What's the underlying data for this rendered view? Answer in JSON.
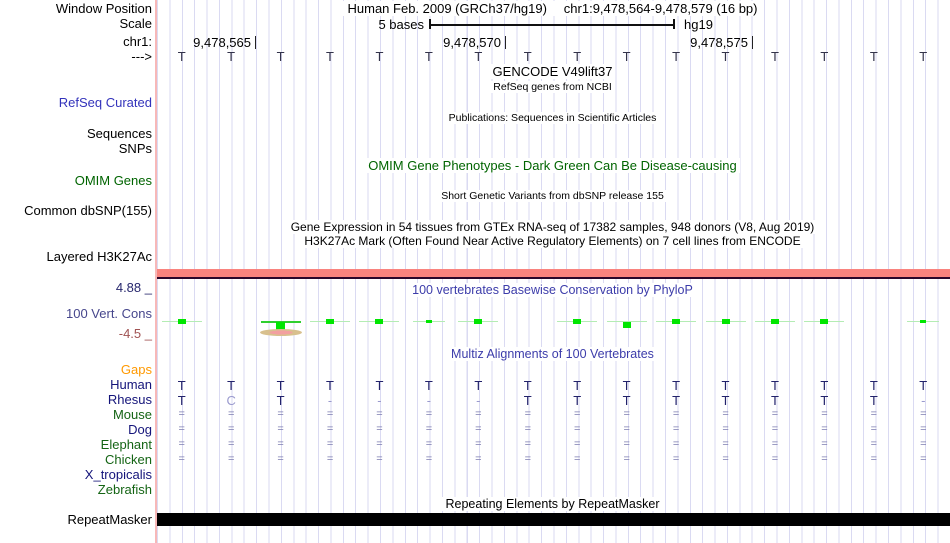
{
  "header": {
    "left_label": "Window Position",
    "assembly": "Human Feb. 2009 (GRCh37/hg19)",
    "position": "chr1:9,478,564-9,478,579 (16 bp)"
  },
  "scale_row": {
    "left_label": "Scale",
    "bar_label": "5 bases",
    "assembly": "hg19"
  },
  "ruler": {
    "left_label": "chr1:",
    "ticks": [
      {
        "label": "9,478,565",
        "x": 255
      },
      {
        "label": "9,478,570",
        "x": 505
      },
      {
        "label": "9,478,575",
        "x": 752
      }
    ]
  },
  "sequence": {
    "left_label": "--->",
    "bases": [
      "T",
      "T",
      "T",
      "T",
      "T",
      "T",
      "T",
      "T",
      "T",
      "T",
      "T",
      "T",
      "T",
      "T",
      "T",
      "T"
    ]
  },
  "tracks": {
    "gencode": {
      "center_label": "GENCODE V49lift37"
    },
    "refseq": {
      "center_label": "RefSeq genes from NCBI",
      "left_label": "RefSeq Curated"
    },
    "publications": {
      "center_label": "Publications: Sequences in Scientific Articles"
    },
    "sequences_label": "Sequences",
    "snps_label": "SNPs",
    "omim": {
      "center_label": "OMIM Gene Phenotypes - Dark Green Can Be Disease-causing",
      "left_label": "OMIM Genes"
    },
    "dbsnp": {
      "center_label": "Short Genetic Variants from dbSNP release 155",
      "left_label": "Common dbSNP(155)"
    },
    "gtex": {
      "center_label": "Gene Expression in 54 tissues from GTEx RNA-seq of 17382 samples, 948 donors (V8, Aug 2019)"
    },
    "h3k27ac": {
      "center_label": "H3K27Ac Mark (Often Found Near Active Regulatory Elements) on 7 cell lines from ENCODE",
      "left_label": "Layered H3K27Ac"
    },
    "conservation": {
      "center_label": "100 vertebrates Basewise Conservation by PhyloP",
      "left_label": "100 Vert. Cons",
      "max_label": "4.88 _",
      "min_label": "-4.5 _"
    },
    "multiz": {
      "center_label": "Multiz Alignments of 100 Vertebrates"
    },
    "repeatmasker": {
      "center_label": "Repeating Elements by RepeatMasker",
      "left_label": "RepeatMasker"
    }
  },
  "colors": {
    "track_blue_label": "#3333bb",
    "dark_green": "#006400",
    "center_blue": "#3c3caa",
    "cons_max": "#28286e",
    "cons_min": "#a05252",
    "cons_label": "#46468c",
    "orange": "#ff9900",
    "navy_species": "#14147a",
    "green_species": "#146414",
    "seq_letter": "#33334a",
    "aln_letter": "#22226b",
    "aln_soft": "#9a9ace",
    "aln_eq": "#7d7db0",
    "grid_line": "#dadaf2",
    "salmon_bar": "#f9837e",
    "black_bar": "#000000",
    "cons_bright": "#00e600",
    "cons_light_line": "#b4ecb4",
    "cons_dark_line": "#2fcf2f"
  },
  "chart_data": {
    "type": "genome-browser-tracks",
    "window": {
      "chrom": "chr1",
      "start": 9478564,
      "end": 9478579,
      "width_bp": 16,
      "db": "hg19"
    },
    "conservation": {
      "name": "100 Vert. Cons",
      "ylim": [
        -4.5,
        4.88
      ],
      "marks": [
        "normal",
        "none",
        "big",
        "normal",
        "normal",
        "small",
        "normal",
        "none",
        "normal",
        "below",
        "normal",
        "normal",
        "normal",
        "normal",
        "none",
        "small"
      ]
    },
    "alignment": {
      "species": [
        {
          "name": "Gaps",
          "label_color": "#ff9900",
          "row": []
        },
        {
          "name": "Human",
          "label_color": "#14147a",
          "row": [
            "T",
            "T",
            "T",
            "T",
            "T",
            "T",
            "T",
            "T",
            "T",
            "T",
            "T",
            "T",
            "T",
            "T",
            "T",
            "T"
          ]
        },
        {
          "name": "Rhesus",
          "label_color": "#14147a",
          "row": [
            "T",
            "C",
            "T",
            "-",
            "-",
            "-",
            "-",
            "T",
            "T",
            "T",
            "T",
            "T",
            "T",
            "T",
            "T",
            "-"
          ]
        },
        {
          "name": "Mouse",
          "label_color": "#146414",
          "row": [
            "=",
            "=",
            "=",
            "=",
            "=",
            "=",
            "=",
            "=",
            "=",
            "=",
            "=",
            "=",
            "=",
            "=",
            "=",
            "="
          ]
        },
        {
          "name": "Dog",
          "label_color": "#14147a",
          "row": [
            "=",
            "=",
            "=",
            "=",
            "=",
            "=",
            "=",
            "=",
            "=",
            "=",
            "=",
            "=",
            "=",
            "=",
            "=",
            "="
          ]
        },
        {
          "name": "Elephant",
          "label_color": "#146414",
          "row": [
            "=",
            "=",
            "=",
            "=",
            "=",
            "=",
            "=",
            "=",
            "=",
            "=",
            "=",
            "=",
            "=",
            "=",
            "=",
            "="
          ]
        },
        {
          "name": "Chicken",
          "label_color": "#146414",
          "row": [
            "=",
            "=",
            "=",
            "=",
            "=",
            "=",
            "=",
            "=",
            "=",
            "=",
            "=",
            "=",
            "=",
            "=",
            "=",
            "="
          ]
        },
        {
          "name": "X_tropicalis",
          "label_color": "#14147a",
          "row": []
        },
        {
          "name": "Zebrafish",
          "label_color": "#146414",
          "row": []
        }
      ]
    },
    "repeatmasker_bar": {
      "full_span": true
    }
  }
}
